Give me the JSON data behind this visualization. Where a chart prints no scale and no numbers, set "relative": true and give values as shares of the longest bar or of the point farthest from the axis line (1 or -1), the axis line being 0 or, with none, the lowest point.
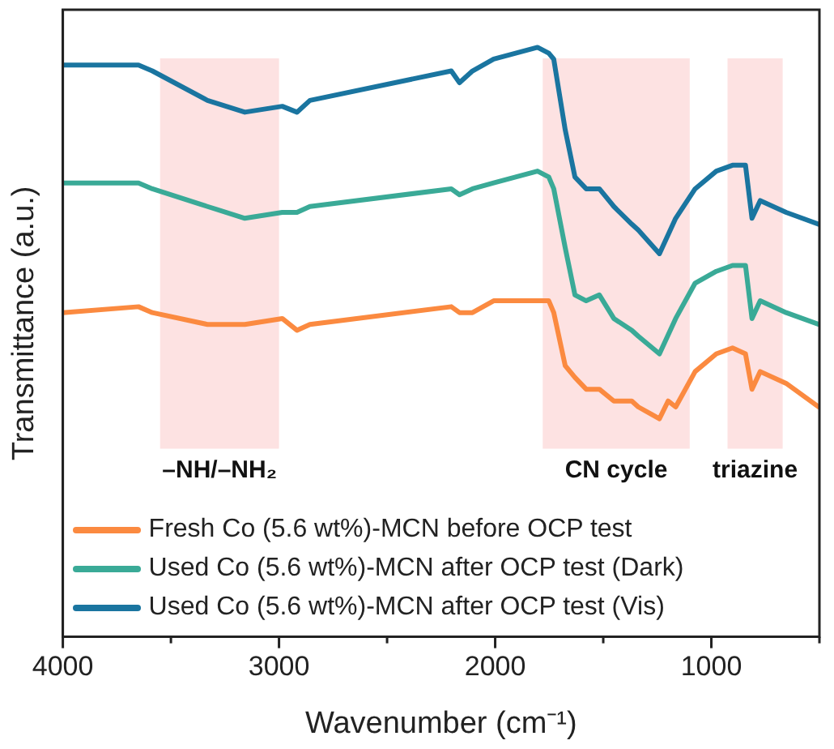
{
  "chart_data": {
    "type": "line",
    "relative": true,
    "xlabel": "Wavenumber (cm⁻¹)",
    "ylabel": "Transmittance (a.u.)",
    "x": [
      4000,
      3650,
      3586,
      3331,
      3158,
      2985,
      2917,
      2857,
      2203,
      2165,
      2105,
      2007,
      1804,
      1752,
      1729,
      1676,
      1631,
      1579,
      1518,
      1451,
      1368,
      1338,
      1240,
      1165,
      1075,
      977,
      902,
      842,
      812,
      774,
      654,
      503
    ],
    "xlim": [
      4000,
      500
    ],
    "xticks": [
      4000,
      {
        "value": 3500,
        "label": null
      },
      3000,
      {
        "value": 2500,
        "label": null
      },
      2000,
      {
        "value": 1500,
        "label": null
      },
      1000,
      {
        "value": 500,
        "label": null
      }
    ],
    "series": [
      {
        "name": "Fresh Co (5.6 wt%)-MCN before OCP test",
        "color": "#fb8a40",
        "x": [
          4000,
          3650,
          3586,
          3331,
          3158,
          2985,
          2917,
          2857,
          2203,
          2165,
          2105,
          2007,
          1804,
          1752,
          1729,
          1676,
          1631,
          1579,
          1518,
          1451,
          1368,
          1338,
          1240,
          1200,
          1165,
          1075,
          977,
          902,
          842,
          812,
          774,
          654,
          503
        ],
        "values": [
          0.55,
          0.56,
          0.55,
          0.53,
          0.53,
          0.54,
          0.52,
          0.53,
          0.56,
          0.55,
          0.55,
          0.57,
          0.57,
          0.57,
          0.55,
          0.46,
          0.44,
          0.42,
          0.42,
          0.4,
          0.4,
          0.39,
          0.37,
          0.4,
          0.39,
          0.45,
          0.48,
          0.49,
          0.48,
          0.42,
          0.45,
          0.43,
          0.39
        ]
      },
      {
        "name": "Used Co (5.6 wt%)-MCN after OCP test (Dark)",
        "color": "#3aaa97",
        "values": [
          0.77,
          0.77,
          0.76,
          0.73,
          0.71,
          0.72,
          0.72,
          0.73,
          0.76,
          0.75,
          0.76,
          0.77,
          0.79,
          0.78,
          0.76,
          0.66,
          0.58,
          0.57,
          0.58,
          0.54,
          0.52,
          0.51,
          0.48,
          0.54,
          0.6,
          0.62,
          0.63,
          0.63,
          0.54,
          0.57,
          0.55,
          0.53
        ]
      },
      {
        "name": "Used Co (5.6 wt%)-MCN after OCP test (Vis)",
        "color": "#1a75a0",
        "values": [
          0.97,
          0.97,
          0.96,
          0.91,
          0.89,
          0.9,
          0.89,
          0.91,
          0.96,
          0.94,
          0.96,
          0.98,
          1,
          0.99,
          0.98,
          0.86,
          0.78,
          0.76,
          0.76,
          0.73,
          0.7,
          0.69,
          0.65,
          0.71,
          0.76,
          0.79,
          0.8,
          0.8,
          0.71,
          0.74,
          0.72,
          0.7
        ]
      }
    ],
    "bands": [
      {
        "axis": "x",
        "from": 3550,
        "to": 3000,
        "label": "–NH/–NH₂",
        "color": "#fde2e2"
      },
      {
        "axis": "x",
        "from": 1780,
        "to": 1100,
        "label": "CN cycle",
        "color": "#fde2e2"
      },
      {
        "axis": "x",
        "from": 925,
        "to": 670,
        "label": "triazine",
        "color": "#fde2e2"
      }
    ],
    "legend": "bottom left",
    "grid": false,
    "marker": "none",
    "line_style": "solid"
  }
}
